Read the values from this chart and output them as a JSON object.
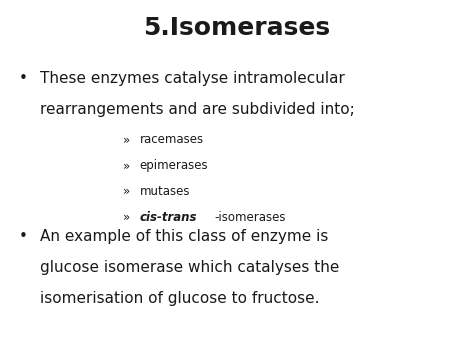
{
  "title": "5.Isomerases",
  "title_fontsize": 18,
  "title_fontweight": "bold",
  "background_color": "#ffffff",
  "text_color": "#1a1a1a",
  "bullet1_line1": "These enzymes catalyse intramolecular",
  "bullet1_line2": "rearrangements and are subdivided into;",
  "sub_items": [
    "racemases",
    "epimerases",
    "mutases"
  ],
  "sub_item4_bold_italic": "cis-trans",
  "sub_item4_suffix": "-isomerases",
  "bullet2_line1": "An example of this class of enzyme is",
  "bullet2_line2": "glucose isomerase which catalyses the",
  "bullet2_line3": "isomerisation of glucose to fructose.",
  "bullet_fontsize": 11,
  "sub_fontsize": 8.5,
  "bullet_char": "•",
  "sub_char": "»"
}
